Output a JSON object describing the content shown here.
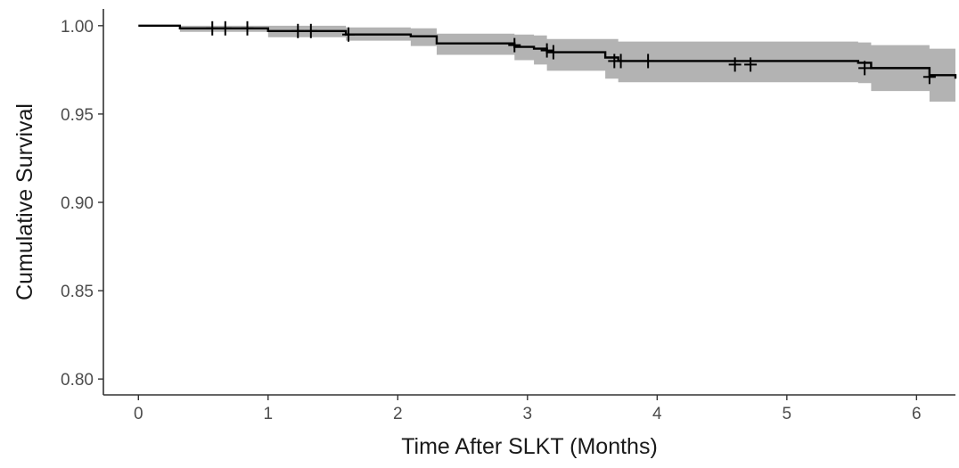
{
  "chart_data": {
    "type": "line",
    "title": "",
    "xlabel": "Time After SLKT (Months)",
    "ylabel": "Cumulative Survival",
    "xlim": [
      -0.27,
      6.3
    ],
    "ylim": [
      0.791,
      1.0095
    ],
    "x_ticks": [
      0,
      1,
      2,
      3,
      4,
      5,
      6
    ],
    "x_tick_labels": [
      "0",
      "1",
      "2",
      "3",
      "4",
      "5",
      "6"
    ],
    "y_ticks": [
      0.8,
      0.85,
      0.9,
      0.95,
      1.0
    ],
    "y_tick_labels": [
      "0.80",
      "0.85",
      "0.90",
      "0.95",
      "1.00"
    ],
    "grid": false,
    "legend": "none",
    "colors": {
      "line": "#000000",
      "band": "#b3b3b3",
      "axis": "#333333"
    },
    "series": [
      {
        "type": "step",
        "x": [
          0,
          0.32,
          1.0,
          1.6,
          2.1,
          2.3,
          2.9,
          3.05,
          3.15,
          3.6,
          3.7,
          5.55,
          5.65,
          6.1,
          6.3
        ],
        "y": [
          1.0,
          0.9985,
          0.997,
          0.995,
          0.994,
          0.99,
          0.988,
          0.987,
          0.985,
          0.982,
          0.98,
          0.979,
          0.976,
          0.972,
          0.97
        ],
        "lower": [
          1.0,
          0.9965,
          0.9935,
          0.9915,
          0.9885,
          0.9835,
          0.9805,
          0.978,
          0.9745,
          0.97,
          0.968,
          0.9675,
          0.963,
          0.957,
          0.955
        ],
        "upper": [
          1.0,
          1.0,
          1.0,
          0.999,
          0.9985,
          0.9955,
          0.995,
          0.9945,
          0.9925,
          0.9925,
          0.991,
          0.9905,
          0.989,
          0.987,
          0.986
        ]
      }
    ],
    "censor_marks": [
      {
        "x": 0.57,
        "y": 0.9985
      },
      {
        "x": 0.67,
        "y": 0.9985
      },
      {
        "x": 0.84,
        "y": 0.9985
      },
      {
        "x": 1.23,
        "y": 0.997
      },
      {
        "x": 1.33,
        "y": 0.997
      },
      {
        "x": 1.62,
        "y": 0.995
      },
      {
        "x": 2.9,
        "y": 0.989
      },
      {
        "x": 3.15,
        "y": 0.986
      },
      {
        "x": 3.2,
        "y": 0.985
      },
      {
        "x": 3.67,
        "y": 0.98
      },
      {
        "x": 3.72,
        "y": 0.98
      },
      {
        "x": 3.93,
        "y": 0.98
      },
      {
        "x": 4.6,
        "y": 0.978
      },
      {
        "x": 4.72,
        "y": 0.978
      },
      {
        "x": 5.6,
        "y": 0.976
      },
      {
        "x": 6.1,
        "y": 0.971
      }
    ]
  }
}
